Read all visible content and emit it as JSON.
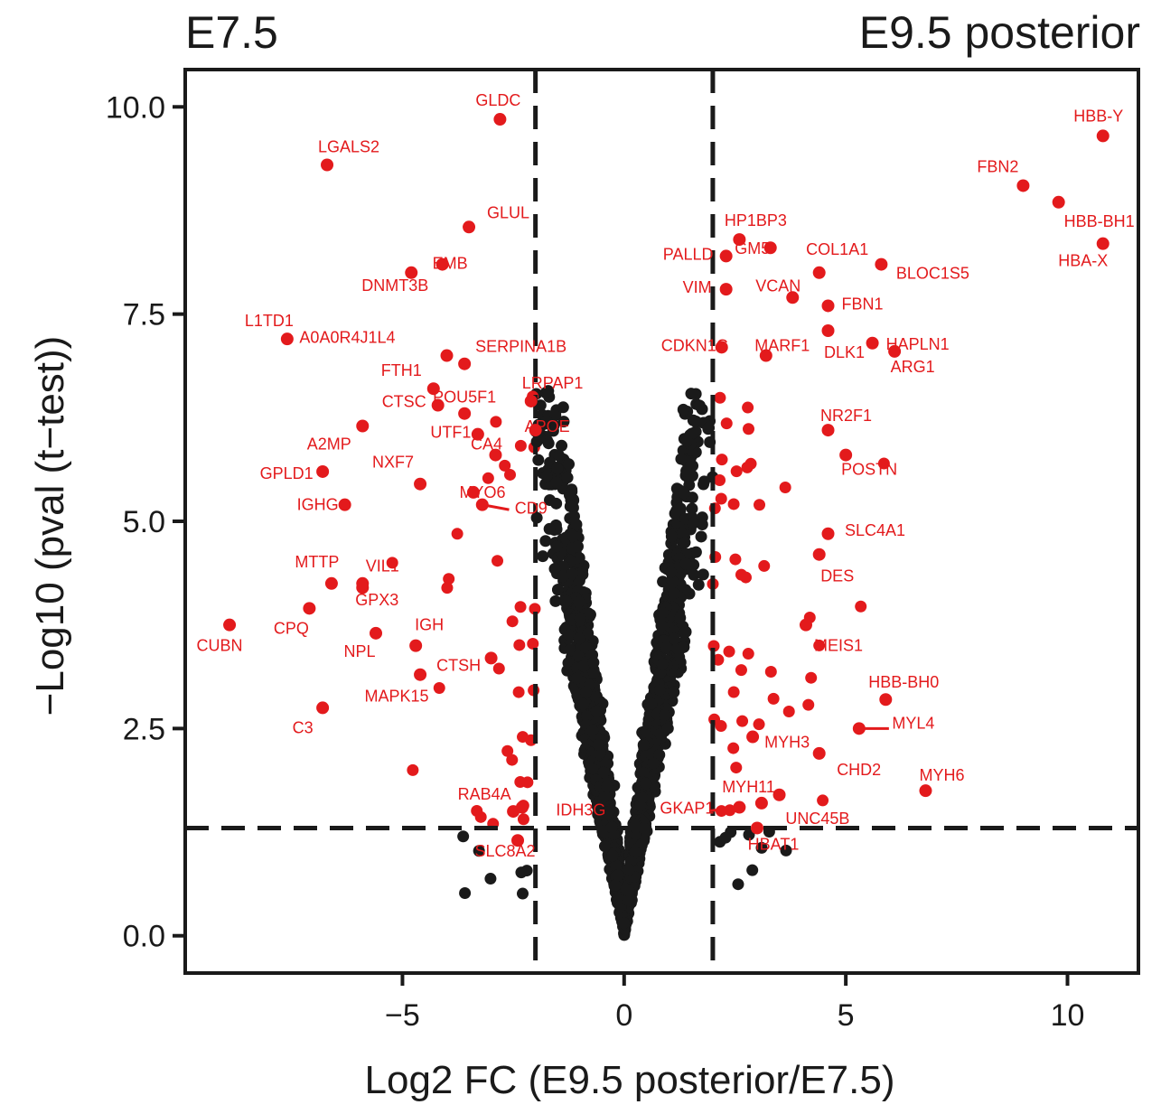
{
  "chart_data": {
    "type": "scatter",
    "title_left": "E7.5",
    "title_right": "E9.5 posterior",
    "xlabel": "Log2 FC (E9.5 posterior/E7.5)",
    "ylabel": "−Log10 (pval (t−test))",
    "xlim": [
      -9.9,
      11.6
    ],
    "ylim": [
      -0.45,
      10.45
    ],
    "x_ticks": [
      {
        "value": -5,
        "label": "−5"
      },
      {
        "value": 0,
        "label": "0"
      },
      {
        "value": 5,
        "label": "5"
      },
      {
        "value": 10,
        "label": "10"
      }
    ],
    "y_ticks": [
      {
        "value": 0,
        "label": "0.0"
      },
      {
        "value": 2.5,
        "label": "2.5"
      },
      {
        "value": 5,
        "label": "5.0"
      },
      {
        "value": 7.5,
        "label": "7.5"
      },
      {
        "value": 10,
        "label": "10.0"
      }
    ],
    "thresholds": {
      "fc": [
        -2,
        2
      ],
      "pval": 1.3
    },
    "colors": {
      "significant": "#e31a1c",
      "nonsignificant": "#1a1a1a",
      "axis": "#1a1a1a"
    },
    "labeled_points": [
      {
        "name": "GLDC",
        "x": -2.8,
        "y": 9.85,
        "dx": -2,
        "dy": -15,
        "anchor": "middle"
      },
      {
        "name": "LGALS2",
        "x": -6.7,
        "y": 9.3,
        "dx": 4,
        "dy": -14,
        "anchor": "start",
        "tx_off": -14
      },
      {
        "name": "GLUL",
        "x": -3.5,
        "y": 8.55,
        "dx": 20,
        "dy": -10,
        "anchor": "start"
      },
      {
        "name": "EMB",
        "x": -4.1,
        "y": 8.1,
        "dx": 0,
        "dy": 5,
        "anchor": "end",
        "tx_off": 28
      },
      {
        "name": "DNMT3B",
        "x": -4.8,
        "y": 8.0,
        "dx": -18,
        "dy": 20,
        "anchor": "middle"
      },
      {
        "name": "L1TD1",
        "x": -7.6,
        "y": 7.2,
        "dx": -20,
        "dy": -14,
        "anchor": "middle"
      },
      {
        "name": "A0A0R4J1L4",
        "x": -4.0,
        "y": 7.0,
        "dx": -57,
        "dy": -14,
        "anchor": "end"
      },
      {
        "name": "SERPINA1B",
        "x": -3.6,
        "y": 6.9,
        "dx": 12,
        "dy": -13,
        "anchor": "start"
      },
      {
        "name": "FTH1",
        "x": -4.3,
        "y": 6.6,
        "dx": -58,
        "dy": -14,
        "anchor": "start"
      },
      {
        "name": "LRPAP1",
        "x": -2.1,
        "y": 6.45,
        "dx": -10,
        "dy": -14,
        "anchor": "start"
      },
      {
        "name": "CTSC",
        "x": -4.2,
        "y": 6.4,
        "dx": -62,
        "dy": 2,
        "anchor": "start"
      },
      {
        "name": "POU5F1",
        "x": -3.6,
        "y": 6.3,
        "dx": 0,
        "dy": -12,
        "anchor": "middle"
      },
      {
        "name": "APOE",
        "x": -2.0,
        "y": 6.1,
        "dx": -12,
        "dy": 2,
        "anchor": "start"
      },
      {
        "name": "A2MP",
        "x": -5.9,
        "y": 6.15,
        "dx": -37,
        "dy": 26,
        "anchor": "middle"
      },
      {
        "name": "UTF1",
        "x": -3.3,
        "y": 6.05,
        "dx": -30,
        "dy": 4,
        "anchor": "middle"
      },
      {
        "name": "CA4",
        "x": -2.9,
        "y": 5.8,
        "dx": -10,
        "dy": -6,
        "anchor": "middle"
      },
      {
        "name": "NXF7",
        "x": -4.6,
        "y": 5.45,
        "dx": -30,
        "dy": -18,
        "anchor": "middle"
      },
      {
        "name": "GPLD1",
        "x": -6.8,
        "y": 5.6,
        "dx": -40,
        "dy": 8,
        "anchor": "middle"
      },
      {
        "name": "MYO6",
        "x": -3.4,
        "y": 5.35,
        "dx": 10,
        "dy": 6,
        "anchor": "middle"
      },
      {
        "name": "IGHG",
        "x": -6.3,
        "y": 5.2,
        "dx": -30,
        "dy": 6,
        "anchor": "middle"
      },
      {
        "name": "CD9",
        "x": -3.2,
        "y": 5.2,
        "dx": 54,
        "dy": 10,
        "anchor": "middle",
        "line": true
      },
      {
        "name": "MTTP",
        "x": -6.6,
        "y": 4.25,
        "dx": -16,
        "dy": -18,
        "anchor": "middle"
      },
      {
        "name": "VIL1",
        "x": -5.9,
        "y": 4.2,
        "dx": 22,
        "dy": -18,
        "anchor": "middle"
      },
      {
        "name": "GPX3",
        "x": -5.9,
        "y": 4.25,
        "dx": 16,
        "dy": 24,
        "anchor": "middle"
      },
      {
        "name": "CPQ",
        "x": -7.1,
        "y": 3.95,
        "dx": -20,
        "dy": 28,
        "anchor": "middle"
      },
      {
        "name": "CUBN",
        "x": -8.9,
        "y": 3.75,
        "dx": -11,
        "dy": 29,
        "anchor": "middle"
      },
      {
        "name": "IGH",
        "x": -4.7,
        "y": 3.5,
        "dx": 15,
        "dy": -17,
        "anchor": "middle"
      },
      {
        "name": "NPL",
        "x": -5.6,
        "y": 3.65,
        "dx": -18,
        "dy": 26,
        "anchor": "middle"
      },
      {
        "name": "CTSH",
        "x": -3.0,
        "y": 3.35,
        "dx": -36,
        "dy": 14,
        "anchor": "middle"
      },
      {
        "name": "MAPK15",
        "x": -4.6,
        "y": 3.15,
        "dx": -26,
        "dy": 30,
        "anchor": "middle"
      },
      {
        "name": "C3",
        "x": -6.8,
        "y": 2.75,
        "dx": -22,
        "dy": 28,
        "anchor": "middle"
      },
      {
        "name": "RAB4A",
        "x": -2.5,
        "y": 1.5,
        "dx": -32,
        "dy": -13,
        "anchor": "middle"
      },
      {
        "name": "IDH3G",
        "x": -2.3,
        "y": 1.55,
        "dx": 65,
        "dy": 9,
        "anchor": "middle"
      },
      {
        "name": "SLC8A2",
        "x": -2.4,
        "y": 1.15,
        "dx": -14,
        "dy": 18,
        "anchor": "middle"
      },
      {
        "name": "HP1BP3",
        "x": 2.6,
        "y": 8.4,
        "dx": 18,
        "dy": -15,
        "anchor": "middle"
      },
      {
        "name": "PALLD",
        "x": 2.3,
        "y": 8.2,
        "dx": -42,
        "dy": 4,
        "anchor": "middle"
      },
      {
        "name": "GM5",
        "x": 3.3,
        "y": 8.3,
        "dx": -20,
        "dy": 7,
        "anchor": "middle"
      },
      {
        "name": "COL1A1",
        "x": 4.4,
        "y": 8.0,
        "dx": 20,
        "dy": -20,
        "anchor": "middle"
      },
      {
        "name": "BLOC1S5",
        "x": 5.8,
        "y": 8.1,
        "dx": 57,
        "dy": 16,
        "anchor": "middle"
      },
      {
        "name": "VIM",
        "x": 2.3,
        "y": 7.8,
        "dx": -32,
        "dy": 4,
        "anchor": "middle"
      },
      {
        "name": "VCAN",
        "x": 3.8,
        "y": 7.7,
        "dx": -16,
        "dy": -7,
        "anchor": "middle"
      },
      {
        "name": "FBN1",
        "x": 4.6,
        "y": 7.6,
        "dx": 38,
        "dy": 4,
        "anchor": "middle"
      },
      {
        "name": "CDKN1C",
        "x": 2.2,
        "y": 7.1,
        "dx": -30,
        "dy": 4,
        "anchor": "middle"
      },
      {
        "name": "MARF1",
        "x": 3.2,
        "y": 7.0,
        "dx": 18,
        "dy": -5,
        "anchor": "middle"
      },
      {
        "name": "HAPLN1",
        "x": 5.6,
        "y": 7.15,
        "dx": 50,
        "dy": 7,
        "anchor": "middle"
      },
      {
        "name": "DLK1",
        "x": 4.6,
        "y": 7.3,
        "dx": 18,
        "dy": 30,
        "anchor": "middle"
      },
      {
        "name": "ARG1",
        "x": 6.1,
        "y": 7.05,
        "dx": 20,
        "dy": 23,
        "anchor": "middle"
      },
      {
        "name": "NR2F1",
        "x": 4.6,
        "y": 6.1,
        "dx": 20,
        "dy": -10,
        "anchor": "middle"
      },
      {
        "name": "POSTN",
        "x": 5.0,
        "y": 5.8,
        "dx": 26,
        "dy": 22,
        "anchor": "middle"
      },
      {
        "name": "SLC4A1",
        "x": 4.6,
        "y": 4.85,
        "dx": 52,
        "dy": 2,
        "anchor": "middle"
      },
      {
        "name": "DES",
        "x": 4.4,
        "y": 4.6,
        "dx": 20,
        "dy": 30,
        "anchor": "middle"
      },
      {
        "name": "MEIS1",
        "x": 4.1,
        "y": 3.75,
        "dx": 36,
        "dy": 29,
        "anchor": "middle"
      },
      {
        "name": "HBB-BH0",
        "x": 5.9,
        "y": 2.85,
        "dx": 20,
        "dy": -13,
        "anchor": "middle"
      },
      {
        "name": "MYL4",
        "x": 5.3,
        "y": 2.5,
        "dx": 60,
        "dy": 0,
        "anchor": "middle",
        "line": true
      },
      {
        "name": "MYH3",
        "x": 2.9,
        "y": 2.4,
        "dx": 38,
        "dy": 12,
        "anchor": "middle"
      },
      {
        "name": "CHD2",
        "x": 4.4,
        "y": 2.2,
        "dx": 44,
        "dy": 24,
        "anchor": "middle"
      },
      {
        "name": "MYH6",
        "x": 6.8,
        "y": 1.75,
        "dx": 18,
        "dy": -11,
        "anchor": "middle"
      },
      {
        "name": "MYH11",
        "x": 3.5,
        "y": 1.7,
        "dx": -34,
        "dy": -3,
        "anchor": "middle"
      },
      {
        "name": "GKAP1",
        "x": 2.6,
        "y": 1.55,
        "dx": -58,
        "dy": 7,
        "anchor": "middle",
        "line": true
      },
      {
        "name": "UNC45B",
        "x": 3.1,
        "y": 1.6,
        "dx": 62,
        "dy": 23,
        "anchor": "middle"
      },
      {
        "name": "HBAT1",
        "x": 3.0,
        "y": 1.3,
        "dx": 18,
        "dy": 24,
        "anchor": "middle"
      },
      {
        "name": "HBB-Y",
        "x": 10.8,
        "y": 9.65,
        "dx": -5,
        "dy": -16,
        "anchor": "middle"
      },
      {
        "name": "FBN2",
        "x": 9.0,
        "y": 9.05,
        "dx": -28,
        "dy": -15,
        "anchor": "middle"
      },
      {
        "name": "HBB-BH1",
        "x": 9.8,
        "y": 8.85,
        "dx": 45,
        "dy": 27,
        "anchor": "middle"
      },
      {
        "name": "HBA-X",
        "x": 10.8,
        "y": 8.35,
        "dx": -22,
        "dy": 25,
        "anchor": "middle"
      }
    ],
    "background_seed": 20240517,
    "background_note_count": 2600
  }
}
